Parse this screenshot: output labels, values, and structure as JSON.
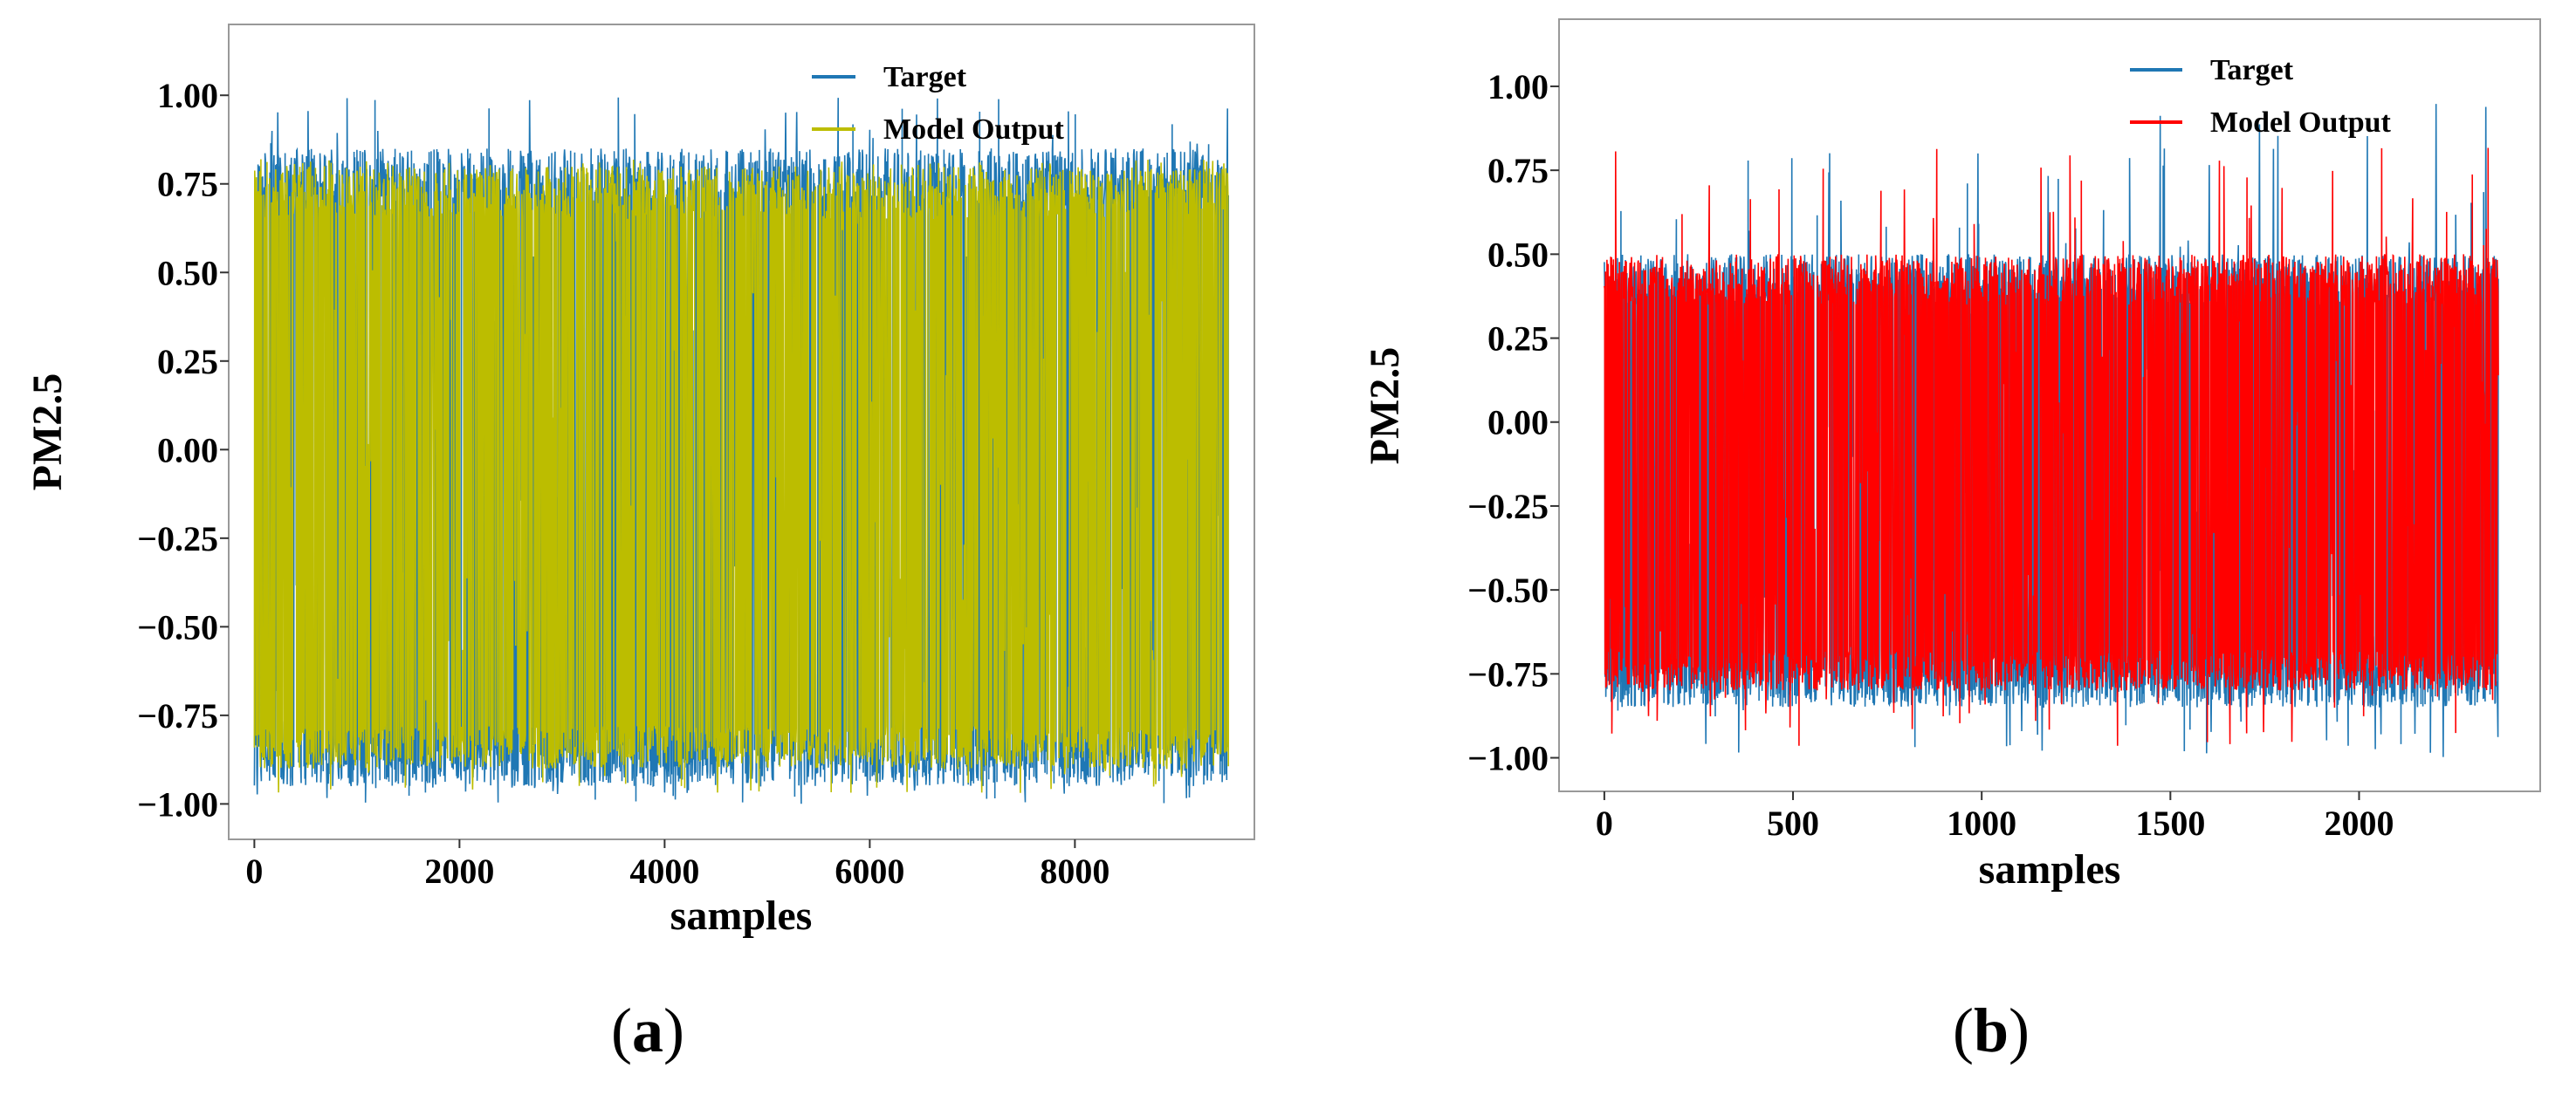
{
  "chart_data": [
    {
      "type": "line",
      "panel_label_open": "(",
      "panel_label_letter": "a",
      "panel_label_close": ")",
      "xlabel": "samples",
      "ylabel": "PM2.5",
      "xlim": [
        -250,
        9750
      ],
      "ylim": [
        -1.1,
        1.2
      ],
      "xticks": [
        0,
        2000,
        4000,
        6000,
        8000
      ],
      "xtick_labels": [
        "0",
        "2000",
        "4000",
        "6000",
        "8000"
      ],
      "yticks": [
        1.0,
        0.75,
        0.5,
        0.25,
        0.0,
        -0.25,
        -0.5,
        -0.75,
        -1.0
      ],
      "ytick_labels": [
        "1.00",
        "0.75",
        "0.50",
        "0.25",
        "0.00",
        "−0.25",
        "−0.50",
        "−0.75",
        "−1.00"
      ],
      "n_samples": 9500,
      "legend_position": "upper-right",
      "series": [
        {
          "name": "Target",
          "color": "#1f77b4",
          "typical_range": [
            -0.95,
            0.85
          ],
          "extremes": [
            -1.0,
            1.0
          ]
        },
        {
          "name": "Model Output",
          "color": "#bcbd00",
          "typical_range": [
            -0.9,
            0.8
          ],
          "extremes": [
            -0.97,
            0.82
          ]
        }
      ]
    },
    {
      "type": "line",
      "panel_label_open": "(",
      "panel_label_letter": "b",
      "panel_label_close": ")",
      "xlabel": "samples",
      "ylabel": "PM2.5",
      "xlim": [
        -120,
        2480
      ],
      "ylim": [
        -1.1,
        1.2
      ],
      "xticks": [
        0,
        500,
        1000,
        1500,
        2000
      ],
      "xtick_labels": [
        "0",
        "500",
        "1000",
        "1500",
        "2000"
      ],
      "yticks": [
        1.0,
        0.75,
        0.5,
        0.25,
        0.0,
        -0.25,
        -0.5,
        -0.75,
        -1.0
      ],
      "ytick_labels": [
        "1.00",
        "0.75",
        "0.50",
        "0.25",
        "0.00",
        "−0.25",
        "−0.50",
        "−0.75",
        "−1.00"
      ],
      "n_samples": 2370,
      "legend_position": "upper-right",
      "series": [
        {
          "name": "Target",
          "color": "#1f77b4",
          "typical_range": [
            -0.85,
            0.5
          ],
          "extremes": [
            -1.0,
            0.95
          ]
        },
        {
          "name": "Model Output",
          "color": "#ff0000",
          "typical_range": [
            -0.8,
            0.5
          ],
          "extremes": [
            -0.97,
            0.82
          ]
        }
      ]
    }
  ]
}
